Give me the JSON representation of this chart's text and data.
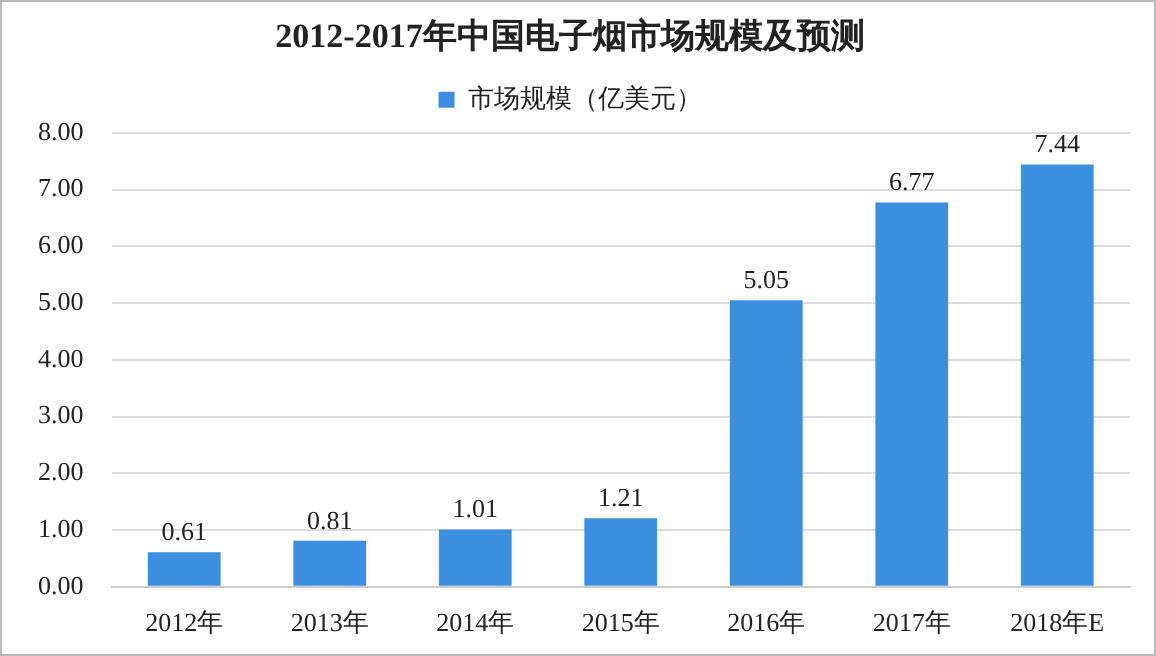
{
  "chart_data": {
    "type": "bar",
    "title": "2012-2017年中国电子烟市场规模及预测",
    "categories": [
      "2012年",
      "2013年",
      "2014年",
      "2015年",
      "2016年",
      "2017年",
      "2018年E"
    ],
    "series": [
      {
        "name": "市场规模（亿美元）",
        "color": "#3c8fe0",
        "values": [
          0.61,
          0.81,
          1.01,
          1.21,
          5.05,
          6.77,
          7.44
        ]
      }
    ],
    "ylim": [
      0,
      8
    ],
    "yticks": [
      {
        "value": 0,
        "label": "0.00"
      },
      {
        "value": 1,
        "label": "1.00"
      },
      {
        "value": 2,
        "label": "2.00"
      },
      {
        "value": 3,
        "label": "3.00"
      },
      {
        "value": 4,
        "label": "4.00"
      },
      {
        "value": 5,
        "label": "5.00"
      },
      {
        "value": 6,
        "label": "6.00"
      },
      {
        "value": 7,
        "label": "7.00"
      },
      {
        "value": 8,
        "label": "8.00"
      }
    ],
    "grid": "y",
    "legend": "top",
    "data_labels": true
  }
}
